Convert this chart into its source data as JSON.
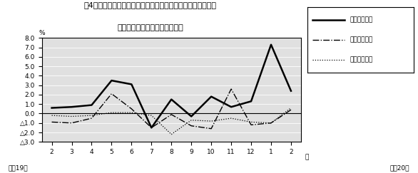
{
  "title_line1": "第4図　　賃金、労働時間、常用雇用指数対前年同月比の推移",
  "title_line2": "（規樯５人以上　調査産業計）",
  "xlabel_right": "月",
  "ylabel": "%",
  "footer_left": "平成19年",
  "footer_right": "平成20年",
  "x_labels": [
    "2",
    "3",
    "4",
    "5",
    "6",
    "7",
    "8",
    "9",
    "10",
    "11",
    "12",
    "1",
    "2"
  ],
  "ylim": [
    -3.0,
    8.0
  ],
  "yticks": [
    -3.0,
    -2.0,
    -1.0,
    0.0,
    1.0,
    2.0,
    3.0,
    4.0,
    5.0,
    6.0,
    7.0,
    8.0
  ],
  "legend_labels": [
    "現金給与総額",
    "総実労働時間",
    "常用雇用指数"
  ],
  "series_chingin": [
    0.6,
    0.7,
    0.9,
    3.5,
    3.1,
    -1.5,
    1.5,
    -0.3,
    1.8,
    0.7,
    1.3,
    7.3,
    2.4
  ],
  "series_rodo": [
    -0.9,
    -1.0,
    -0.5,
    2.1,
    0.5,
    -1.5,
    -0.1,
    -1.3,
    -1.6,
    2.6,
    -1.2,
    -1.0,
    0.4
  ],
  "series_koyo": [
    -0.2,
    -0.3,
    -0.2,
    0.1,
    0.1,
    -0.2,
    -2.2,
    -0.7,
    -0.8,
    -0.5,
    -0.9,
    -1.0,
    0.6
  ],
  "bg_color": "#ffffff",
  "plot_bg_color": "#e0e0e0"
}
